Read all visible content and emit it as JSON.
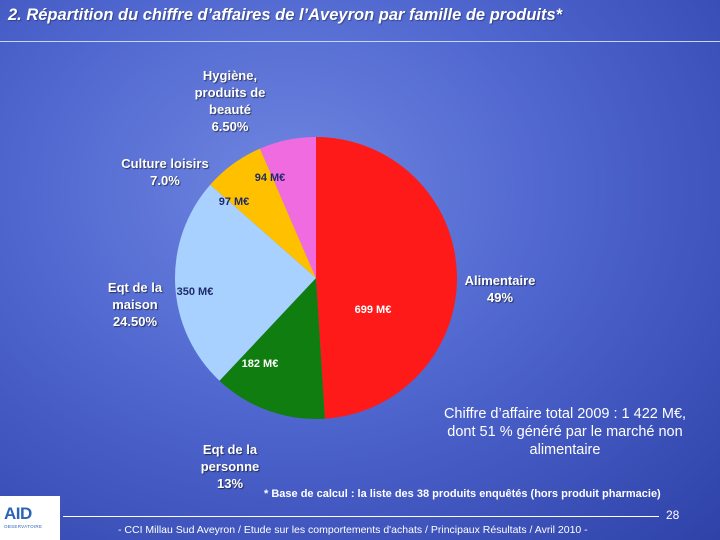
{
  "title": "2. Répartition du chiffre d’affaires de l’Aveyron par famille de produits*",
  "chart_data": {
    "type": "pie",
    "title": "2. Répartition du chiffre d’affaires de l’Aveyron par famille de produits*",
    "start_angle_deg": 0,
    "direction": "clockwise",
    "slices": [
      {
        "category": "Alimentaire",
        "pct_label": "49%",
        "share": 0.49,
        "value_label": "699 M€",
        "color": "#ff1a1a"
      },
      {
        "category": "Eqt de la\npersonne",
        "pct_label": "13%",
        "share": 0.13,
        "value_label": "182 M€",
        "color": "#0f7d0f"
      },
      {
        "category": "Eqt de la\nmaison",
        "pct_label": "24.50%",
        "share": 0.245,
        "value_label": "350 M€",
        "color": "#a9d1ff"
      },
      {
        "category": "Culture loisirs",
        "pct_label": "7.0%",
        "share": 0.07,
        "value_label": "97 M€",
        "color": "#ffc000"
      },
      {
        "category": "Hygiène,\nproduits de\nbeauté",
        "pct_label": "6.50%",
        "share": 0.065,
        "value_label": "94 M€",
        "color": "#f06be0"
      }
    ]
  },
  "note": "Chiffre d’affaire total 2009 : 1 422 M€, dont 51 % généré par le marché non alimentaire",
  "footnote": "* Base de calcul : la liste des 38 produits enquêtés (hors produit pharmacie)",
  "page_number": "28",
  "footer": "- CCI Millau Sud Aveyron / Etude sur les comportements d'achats / Principaux Résultats / Avril 2010 -",
  "logo": {
    "text": "AID",
    "subtext": "OBSERVATOIRE"
  }
}
